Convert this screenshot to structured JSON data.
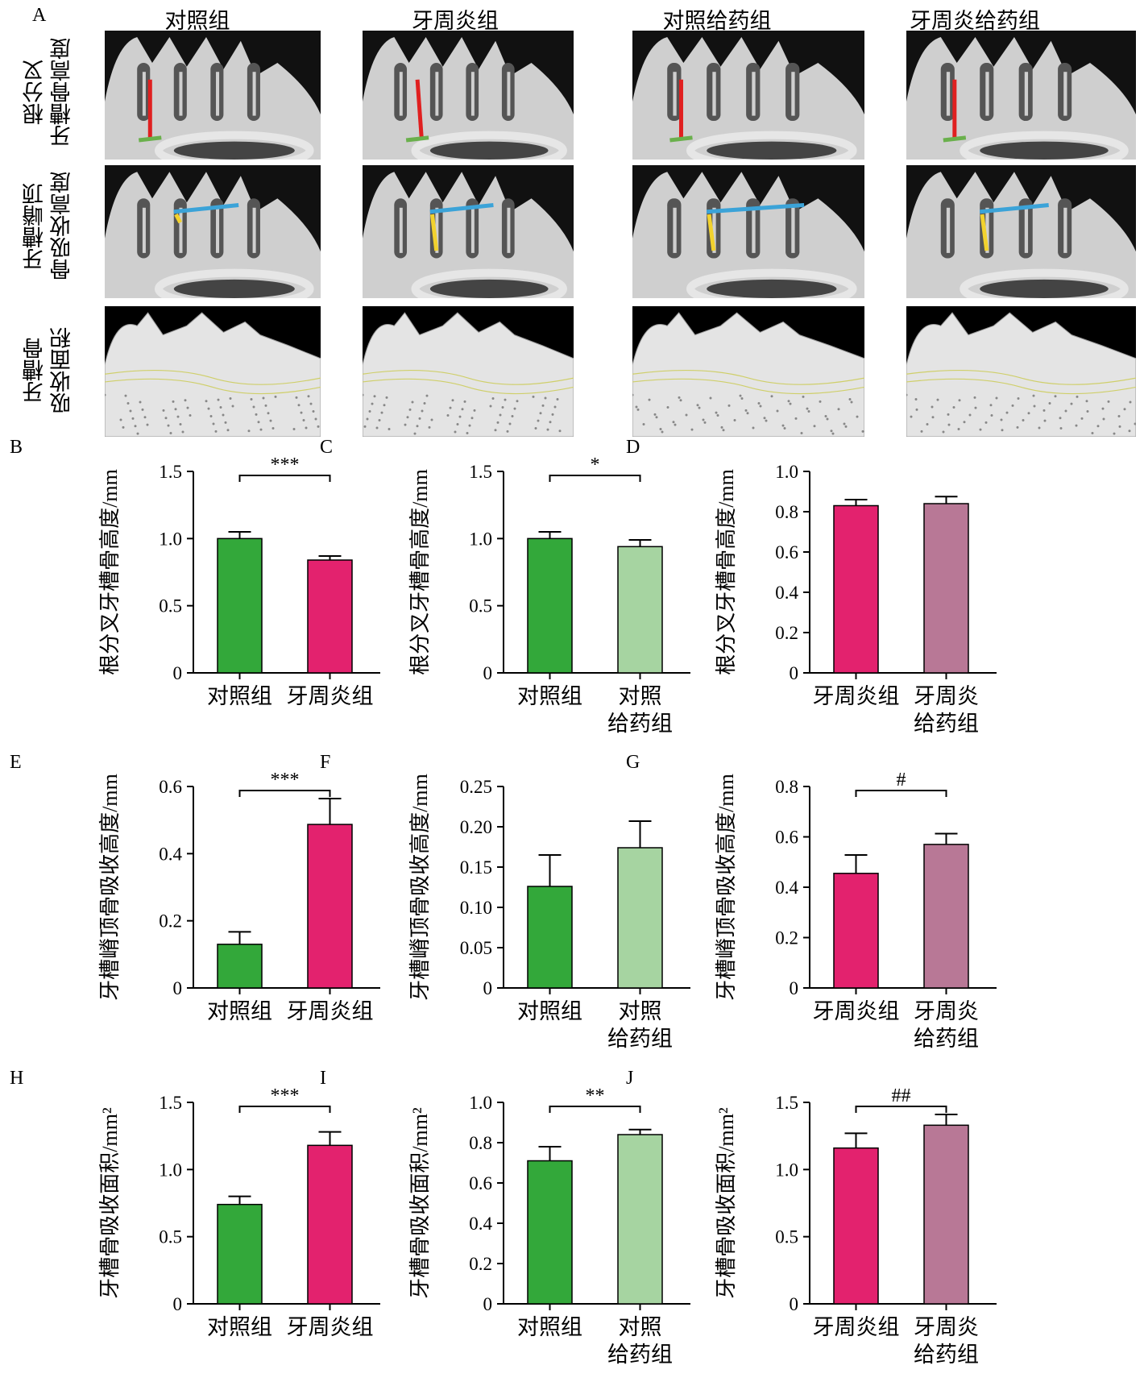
{
  "figure_a": {
    "letter": "A",
    "col_titles": [
      "对照组",
      "牙周炎组",
      "对照给药组",
      "牙周炎给药组"
    ],
    "row_labels": [
      "根分叉\n牙槽骨高度",
      "牙槽嵴顶\n骨吸收高度",
      "牙槽骨\n吸收面积"
    ]
  },
  "colors": {
    "control": "#33a83a",
    "perio": "#e3226e",
    "control_drug": "#a6d4a1",
    "perio_drug": "#b87896",
    "red_marker": "#e02020",
    "green_marker": "#6ab04c",
    "blue_marker": "#3ba3d8",
    "yellow_marker": "#f2d22e"
  },
  "chart_data": [
    {
      "id": "B",
      "type": "bar",
      "ylabel": "根分叉牙槽骨高度/mm",
      "ylim": [
        0,
        1.5
      ],
      "ticks": [
        "0",
        "0.5",
        "1.0",
        "1.5"
      ],
      "categories": [
        [
          "对照组"
        ],
        [
          "牙周炎组"
        ]
      ],
      "values": [
        1.0,
        0.84
      ],
      "errors": [
        0.05,
        0.03
      ],
      "colors": [
        "#33a83a",
        "#e3226e"
      ],
      "sig": "***"
    },
    {
      "id": "C",
      "type": "bar",
      "ylabel": "根分叉牙槽骨高度/mm",
      "ylim": [
        0,
        1.5
      ],
      "ticks": [
        "0",
        "0.5",
        "1.0",
        "1.5"
      ],
      "categories": [
        [
          "对照组"
        ],
        [
          "对照",
          "给药组"
        ]
      ],
      "values": [
        1.0,
        0.94
      ],
      "errors": [
        0.05,
        0.05
      ],
      "colors": [
        "#33a83a",
        "#a6d4a1"
      ],
      "sig": "*"
    },
    {
      "id": "D",
      "type": "bar",
      "ylabel": "根分叉牙槽骨高度/mm",
      "ylim": [
        0,
        1.0
      ],
      "ticks": [
        "0",
        "0.2",
        "0.4",
        "0.6",
        "0.8",
        "1.0"
      ],
      "categories": [
        [
          "牙周炎组"
        ],
        [
          "牙周炎",
          "给药组"
        ]
      ],
      "values": [
        0.83,
        0.84
      ],
      "errors": [
        0.03,
        0.035
      ],
      "colors": [
        "#e3226e",
        "#b87896"
      ],
      "sig": ""
    },
    {
      "id": "E",
      "type": "bar",
      "ylabel": "牙槽嵴顶骨吸收高度/mm",
      "ylim": [
        0,
        0.6
      ],
      "ticks": [
        "0",
        "0.2",
        "0.4",
        "0.6"
      ],
      "categories": [
        [
          "对照组"
        ],
        [
          "牙周炎组"
        ]
      ],
      "values": [
        0.13,
        0.487
      ],
      "errors": [
        0.037,
        0.077
      ],
      "colors": [
        "#33a83a",
        "#e3226e"
      ],
      "sig": "***"
    },
    {
      "id": "F",
      "type": "bar",
      "ylabel": "牙槽嵴顶骨吸收高度/mm",
      "ylim": [
        0,
        0.25
      ],
      "ticks": [
        "0",
        "0.05",
        "0.10",
        "0.15",
        "0.20",
        "0.25"
      ],
      "categories": [
        [
          "对照组"
        ],
        [
          "对照",
          "给药组"
        ]
      ],
      "values": [
        0.126,
        0.174
      ],
      "errors": [
        0.039,
        0.033
      ],
      "colors": [
        "#33a83a",
        "#a6d4a1"
      ],
      "sig": ""
    },
    {
      "id": "G",
      "type": "bar",
      "ylabel": "牙槽嵴顶骨吸收高度/mm",
      "ylim": [
        0,
        0.8
      ],
      "ticks": [
        "0",
        "0.2",
        "0.4",
        "0.6",
        "0.8"
      ],
      "categories": [
        [
          "牙周炎组"
        ],
        [
          "牙周炎",
          "给药组"
        ]
      ],
      "values": [
        0.455,
        0.57
      ],
      "errors": [
        0.073,
        0.043
      ],
      "colors": [
        "#e3226e",
        "#b87896"
      ],
      "sig": "#"
    },
    {
      "id": "H",
      "type": "bar",
      "ylabel": "牙槽骨吸收面积/mm²",
      "ylim": [
        0,
        1.5
      ],
      "ticks": [
        "0",
        "0.5",
        "1.0",
        "1.5"
      ],
      "categories": [
        [
          "对照组"
        ],
        [
          "牙周炎组"
        ]
      ],
      "values": [
        0.74,
        1.18
      ],
      "errors": [
        0.06,
        0.1
      ],
      "colors": [
        "#33a83a",
        "#e3226e"
      ],
      "sig": "***"
    },
    {
      "id": "I",
      "type": "bar",
      "ylabel": "牙槽骨吸收面积/mm²",
      "ylim": [
        0,
        1.0
      ],
      "ticks": [
        "0",
        "0.2",
        "0.4",
        "0.6",
        "0.8",
        "1.0"
      ],
      "categories": [
        [
          "对照组"
        ],
        [
          "对照",
          "给药组"
        ]
      ],
      "values": [
        0.71,
        0.84
      ],
      "errors": [
        0.07,
        0.025
      ],
      "colors": [
        "#33a83a",
        "#a6d4a1"
      ],
      "sig": "**"
    },
    {
      "id": "J",
      "type": "bar",
      "ylabel": "牙槽骨吸收面积/mm²",
      "ylim": [
        0,
        1.5
      ],
      "ticks": [
        "0",
        "0.5",
        "1.0",
        "1.5"
      ],
      "categories": [
        [
          "牙周炎组"
        ],
        [
          "牙周炎",
          "给药组"
        ]
      ],
      "values": [
        1.16,
        1.33
      ],
      "errors": [
        0.11,
        0.08
      ],
      "colors": [
        "#e3226e",
        "#b87896"
      ],
      "sig": "##"
    }
  ]
}
